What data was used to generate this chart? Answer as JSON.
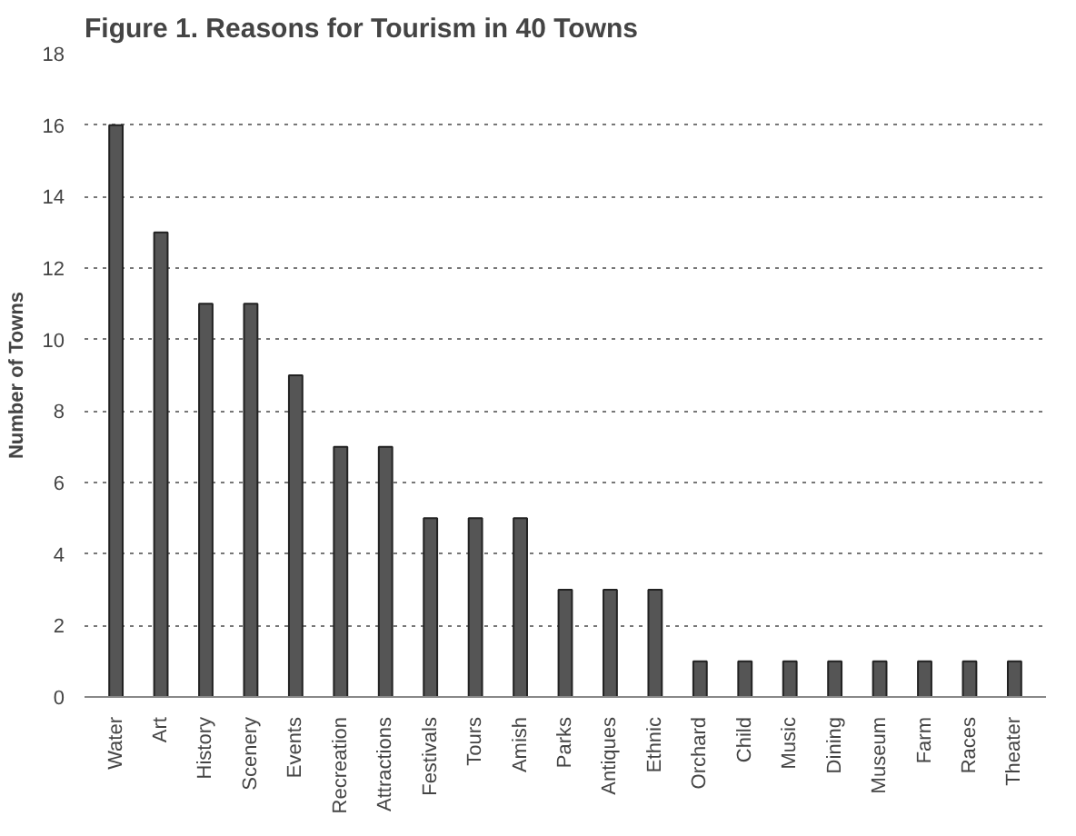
{
  "chart_data": {
    "type": "bar",
    "title": "Figure 1. Reasons for Tourism in 40 Towns",
    "ylabel": "Number of Towns",
    "categories": [
      "Water",
      "Art",
      "History",
      "Scenery",
      "Events",
      "Recreation",
      "Attractions",
      "Festivals",
      "Tours",
      "Amish",
      "Parks",
      "Antiques",
      "Ethnic",
      "Orchard",
      "Child",
      "Music",
      "Dining",
      "Museum",
      "Farm",
      "Races",
      "Theater"
    ],
    "values": [
      16,
      13,
      11,
      11,
      9,
      7,
      7,
      5,
      5,
      5,
      3,
      3,
      3,
      1,
      1,
      1,
      1,
      1,
      1,
      1,
      1
    ],
    "color": "#555555",
    "ylim": [
      0,
      18
    ],
    "yticks": [
      0,
      2,
      4,
      6,
      8,
      10,
      12,
      14,
      16,
      18
    ],
    "grid": "y"
  }
}
